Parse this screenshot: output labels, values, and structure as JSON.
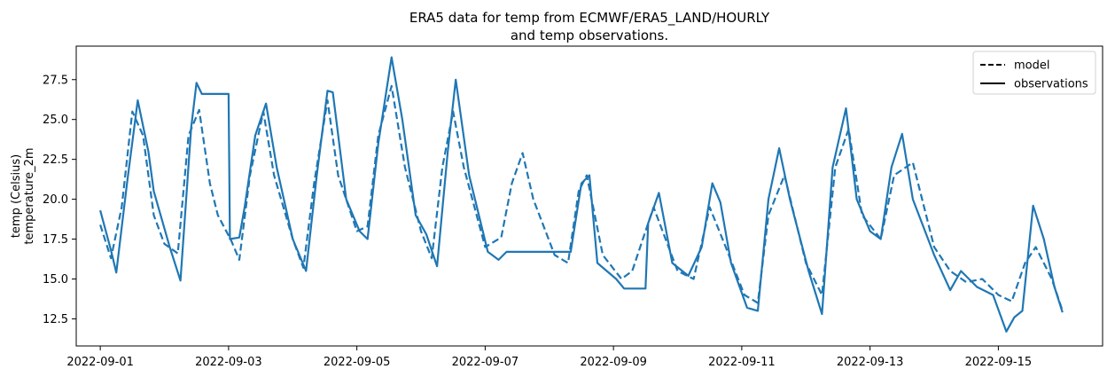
{
  "chart_data": {
    "type": "line",
    "title_line1": "ERA5 data for temp from ECMWF/ERA5_LAND/HOURLY",
    "title_line2": "and temp observations.",
    "ylabel_line1": "temp (Celsius)",
    "ylabel_line2": "temperature_2m",
    "xlim": [
      "2022-08-31T15:00",
      "2022-09-16T15:00"
    ],
    "ylim": [
      10.8,
      29.6
    ],
    "x_ticks": [
      "2022-09-01",
      "2022-09-03",
      "2022-09-05",
      "2022-09-07",
      "2022-09-09",
      "2022-09-11",
      "2022-09-13",
      "2022-09-15"
    ],
    "y_ticks": [
      "12.5",
      "15.0",
      "17.5",
      "20.0",
      "22.5",
      "25.0",
      "27.5"
    ],
    "grid": false,
    "legend_position": "top-right",
    "legend": [
      {
        "label": "model",
        "style": "dashed"
      },
      {
        "label": "observations",
        "style": "solid"
      }
    ],
    "line_color": "#1f77b4",
    "series": [
      {
        "style": "dashed",
        "points": [
          [
            "2022-09-01T00:00",
            18.4
          ],
          [
            "2022-09-01T04:00",
            16.3
          ],
          [
            "2022-09-01T08:00",
            19.5
          ],
          [
            "2022-09-01T12:00",
            25.5
          ],
          [
            "2022-09-01T16:00",
            24.0
          ],
          [
            "2022-09-01T20:00",
            19.0
          ],
          [
            "2022-09-02T00:00",
            17.2
          ],
          [
            "2022-09-02T05:00",
            16.6
          ],
          [
            "2022-09-02T09:00",
            24.0
          ],
          [
            "2022-09-02T13:00",
            25.6
          ],
          [
            "2022-09-02T17:00",
            21.0
          ],
          [
            "2022-09-02T20:00",
            19.0
          ],
          [
            "2022-09-03T01:00",
            17.4
          ],
          [
            "2022-09-03T04:00",
            16.2
          ],
          [
            "2022-09-03T08:00",
            21.5
          ],
          [
            "2022-09-03T13:00",
            25.5
          ],
          [
            "2022-09-03T17:00",
            21.5
          ],
          [
            "2022-09-04T00:00",
            17.5
          ],
          [
            "2022-09-04T04:00",
            15.7
          ],
          [
            "2022-09-04T08:00",
            21.0
          ],
          [
            "2022-09-04T13:00",
            26.2
          ],
          [
            "2022-09-04T17:00",
            21.5
          ],
          [
            "2022-09-05T00:00",
            18.0
          ],
          [
            "2022-09-05T04:00",
            18.3
          ],
          [
            "2022-09-05T08:00",
            24.0
          ],
          [
            "2022-09-05T13:00",
            27.1
          ],
          [
            "2022-09-05T18:00",
            22.0
          ],
          [
            "2022-09-06T00:00",
            18.0
          ],
          [
            "2022-09-06T04:00",
            16.3
          ],
          [
            "2022-09-06T08:00",
            22.0
          ],
          [
            "2022-09-06T12:00",
            25.5
          ],
          [
            "2022-09-06T16:00",
            22.0
          ],
          [
            "2022-09-07T00:00",
            17.0
          ],
          [
            "2022-09-07T06:00",
            17.6
          ],
          [
            "2022-09-07T10:00",
            21.0
          ],
          [
            "2022-09-07T14:00",
            22.9
          ],
          [
            "2022-09-07T18:00",
            20.0
          ],
          [
            "2022-09-08T02:00",
            16.5
          ],
          [
            "2022-09-08T07:00",
            16.0
          ],
          [
            "2022-09-08T11:00",
            20.5
          ],
          [
            "2022-09-08T14:00",
            21.5
          ],
          [
            "2022-09-08T20:00",
            16.5
          ],
          [
            "2022-09-09T03:00",
            15.0
          ],
          [
            "2022-09-09T07:00",
            15.5
          ],
          [
            "2022-09-09T11:00",
            17.5
          ],
          [
            "2022-09-09T15:00",
            19.5
          ],
          [
            "2022-09-10T00:00",
            15.5
          ],
          [
            "2022-09-10T06:00",
            15.0
          ],
          [
            "2022-09-10T12:00",
            19.5
          ],
          [
            "2022-09-10T18:00",
            17.0
          ],
          [
            "2022-09-11T01:00",
            14.0
          ],
          [
            "2022-09-11T06:00",
            13.5
          ],
          [
            "2022-09-11T10:00",
            19.0
          ],
          [
            "2022-09-11T16:00",
            21.5
          ],
          [
            "2022-09-12T00:00",
            16.0
          ],
          [
            "2022-09-12T06:00",
            14.0
          ],
          [
            "2022-09-12T11:00",
            22.0
          ],
          [
            "2022-09-12T16:00",
            24.4
          ],
          [
            "2022-09-12T21:00",
            19.0
          ],
          [
            "2022-09-13T04:00",
            17.5
          ],
          [
            "2022-09-13T09:00",
            21.5
          ],
          [
            "2022-09-13T16:00",
            22.3
          ],
          [
            "2022-09-14T00:00",
            17.0
          ],
          [
            "2022-09-14T06:00",
            15.5
          ],
          [
            "2022-09-14T12:00",
            14.8
          ],
          [
            "2022-09-14T18:00",
            15.0
          ],
          [
            "2022-09-15T00:00",
            14.0
          ],
          [
            "2022-09-15T05:00",
            13.6
          ],
          [
            "2022-09-15T10:00",
            16.0
          ],
          [
            "2022-09-15T14:00",
            17.0
          ],
          [
            "2022-09-15T20:00",
            15.0
          ],
          [
            "2022-09-16T00:00",
            13.0
          ]
        ]
      },
      {
        "style": "solid",
        "points": [
          [
            "2022-09-01T00:00",
            19.3
          ],
          [
            "2022-09-01T04:00",
            16.8
          ],
          [
            "2022-09-01T06:00",
            15.4
          ],
          [
            "2022-09-01T10:00",
            21.0
          ],
          [
            "2022-09-01T14:00",
            26.2
          ],
          [
            "2022-09-01T18:00",
            23.0
          ],
          [
            "2022-09-01T20:00",
            20.5
          ],
          [
            "2022-09-02T02:00",
            17.0
          ],
          [
            "2022-09-02T06:00",
            14.9
          ],
          [
            "2022-09-02T10:00",
            24.5
          ],
          [
            "2022-09-02T12:00",
            27.3
          ],
          [
            "2022-09-02T14:00",
            26.6
          ],
          [
            "2022-09-03T00:00",
            26.6
          ],
          [
            "2022-09-03T00:30",
            17.5
          ],
          [
            "2022-09-03T04:00",
            17.6
          ],
          [
            "2022-09-03T06:00",
            19.5
          ],
          [
            "2022-09-03T10:00",
            24.0
          ],
          [
            "2022-09-03T14:00",
            26.0
          ],
          [
            "2022-09-03T18:00",
            22.0
          ],
          [
            "2022-09-04T00:00",
            17.5
          ],
          [
            "2022-09-04T05:00",
            15.5
          ],
          [
            "2022-09-04T09:00",
            21.5
          ],
          [
            "2022-09-04T13:00",
            26.8
          ],
          [
            "2022-09-04T15:00",
            26.7
          ],
          [
            "2022-09-04T20:00",
            20.0
          ],
          [
            "2022-09-05T01:00",
            18.0
          ],
          [
            "2022-09-05T04:00",
            17.5
          ],
          [
            "2022-09-05T08:00",
            23.5
          ],
          [
            "2022-09-05T13:00",
            28.9
          ],
          [
            "2022-09-05T17:00",
            25.0
          ],
          [
            "2022-09-05T22:00",
            19.0
          ],
          [
            "2022-09-06T02:00",
            17.8
          ],
          [
            "2022-09-06T06:00",
            15.8
          ],
          [
            "2022-09-06T10:00",
            23.0
          ],
          [
            "2022-09-06T13:00",
            27.5
          ],
          [
            "2022-09-06T18:00",
            21.5
          ],
          [
            "2022-09-07T01:00",
            16.7
          ],
          [
            "2022-09-07T05:00",
            16.2
          ],
          [
            "2022-09-07T08:00",
            16.7
          ],
          [
            "2022-09-08T08:00",
            16.7
          ],
          [
            "2022-09-08T12:00",
            21.0
          ],
          [
            "2022-09-08T15:00",
            21.5
          ],
          [
            "2022-09-08T18:00",
            16.0
          ],
          [
            "2022-09-09T01:00",
            15.0
          ],
          [
            "2022-09-09T04:00",
            14.4
          ],
          [
            "2022-09-09T07:00",
            14.4
          ],
          [
            "2022-09-09T12:00",
            14.4
          ],
          [
            "2022-09-09T13:00",
            18.5
          ],
          [
            "2022-09-09T17:00",
            20.4
          ],
          [
            "2022-09-09T22:00",
            16.0
          ],
          [
            "2022-09-10T04:00",
            15.2
          ],
          [
            "2022-09-10T09:00",
            17.0
          ],
          [
            "2022-09-10T13:00",
            21.0
          ],
          [
            "2022-09-10T16:00",
            19.8
          ],
          [
            "2022-09-10T20:00",
            16.0
          ],
          [
            "2022-09-11T02:00",
            13.2
          ],
          [
            "2022-09-11T06:00",
            13.0
          ],
          [
            "2022-09-11T10:00",
            20.0
          ],
          [
            "2022-09-11T14:00",
            23.2
          ],
          [
            "2022-09-11T18:00",
            20.0
          ],
          [
            "2022-09-12T01:00",
            15.5
          ],
          [
            "2022-09-12T06:00",
            12.8
          ],
          [
            "2022-09-12T10:00",
            22.0
          ],
          [
            "2022-09-12T15:00",
            25.7
          ],
          [
            "2022-09-12T19:00",
            20.0
          ],
          [
            "2022-09-13T00:00",
            18.0
          ],
          [
            "2022-09-13T04:00",
            17.5
          ],
          [
            "2022-09-13T08:00",
            22.0
          ],
          [
            "2022-09-13T12:00",
            24.1
          ],
          [
            "2022-09-13T16:00",
            20.0
          ],
          [
            "2022-09-14T00:00",
            16.5
          ],
          [
            "2022-09-14T06:00",
            14.3
          ],
          [
            "2022-09-14T10:00",
            15.5
          ],
          [
            "2022-09-14T16:00",
            14.5
          ],
          [
            "2022-09-14T22:00",
            14.0
          ],
          [
            "2022-09-15T03:00",
            11.7
          ],
          [
            "2022-09-15T06:00",
            12.6
          ],
          [
            "2022-09-15T09:00",
            13.0
          ],
          [
            "2022-09-15T13:00",
            19.6
          ],
          [
            "2022-09-15T17:00",
            17.5
          ],
          [
            "2022-09-15T21:00",
            14.5
          ],
          [
            "2022-09-16T00:00",
            12.9
          ]
        ]
      }
    ]
  }
}
